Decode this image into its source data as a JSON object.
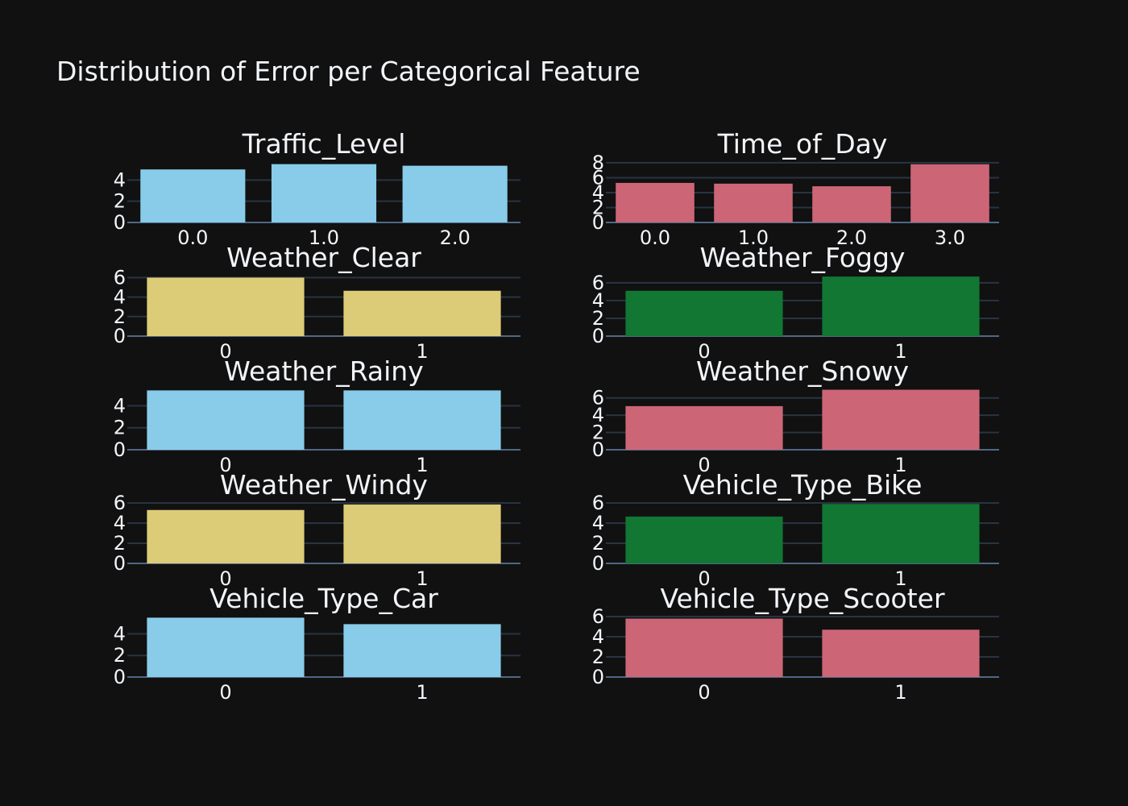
{
  "figure": {
    "title": "Distribution of Error per Categorical Feature",
    "background": "#111111",
    "text_color": "#f2f5fa"
  },
  "chart_data": [
    {
      "type": "bar",
      "title": "Traffic_Level",
      "categories": [
        "0.0",
        "1.0",
        "2.0"
      ],
      "values": [
        5.0,
        5.5,
        5.35
      ],
      "ylim": [
        0,
        5.7
      ],
      "yticks": [
        0,
        2,
        4
      ],
      "color": "#88cce9"
    },
    {
      "type": "bar",
      "title": "Time_of_Day",
      "categories": [
        "0.0",
        "1.0",
        "2.0",
        "3.0"
      ],
      "values": [
        5.3,
        5.2,
        4.85,
        7.8
      ],
      "ylim": [
        0,
        8.1
      ],
      "yticks": [
        0,
        2,
        4,
        6,
        8
      ],
      "color": "#cc6677"
    },
    {
      "type": "bar",
      "title": "Weather_Clear",
      "categories": [
        "0",
        "1"
      ],
      "values": [
        6.0,
        4.65
      ],
      "ylim": [
        0,
        6.2
      ],
      "yticks": [
        0,
        2,
        4,
        6
      ],
      "color": "#ddcc77"
    },
    {
      "type": "bar",
      "title": "Weather_Foggy",
      "categories": [
        "0",
        "1"
      ],
      "values": [
        5.1,
        6.7
      ],
      "ylim": [
        0,
        6.8
      ],
      "yticks": [
        0,
        2,
        4,
        6
      ],
      "color": "#117733"
    },
    {
      "type": "bar",
      "title": "Weather_Rainy",
      "categories": [
        "0",
        "1"
      ],
      "values": [
        5.4,
        5.4
      ],
      "ylim": [
        0,
        5.5
      ],
      "yticks": [
        0,
        2,
        4
      ],
      "color": "#88cce9"
    },
    {
      "type": "bar",
      "title": "Weather_Snowy",
      "categories": [
        "0",
        "1"
      ],
      "values": [
        5.05,
        6.95
      ],
      "ylim": [
        0,
        7.0
      ],
      "yticks": [
        0,
        2,
        4,
        6
      ],
      "color": "#cc6677"
    },
    {
      "type": "bar",
      "title": "Weather_Windy",
      "categories": [
        "0",
        "1"
      ],
      "values": [
        5.3,
        5.85
      ],
      "ylim": [
        0,
        6.0
      ],
      "yticks": [
        0,
        2,
        4,
        6
      ],
      "color": "#ddcc77"
    },
    {
      "type": "bar",
      "title": "Vehicle_Type_Bike",
      "categories": [
        "0",
        "1"
      ],
      "values": [
        4.65,
        5.9
      ],
      "ylim": [
        0,
        6.0
      ],
      "yticks": [
        0,
        2,
        4,
        6
      ],
      "color": "#117733"
    },
    {
      "type": "bar",
      "title": "Vehicle_Type_Car",
      "categories": [
        "0",
        "1"
      ],
      "values": [
        5.5,
        4.9
      ],
      "ylim": [
        0,
        5.6
      ],
      "yticks": [
        0,
        2,
        4
      ],
      "color": "#88cce9"
    },
    {
      "type": "bar",
      "title": "Vehicle_Type_Scooter",
      "categories": [
        "0",
        "1"
      ],
      "values": [
        5.8,
        4.7
      ],
      "ylim": [
        0,
        6.0
      ],
      "yticks": [
        0,
        2,
        4,
        6
      ],
      "color": "#cc6677"
    }
  ]
}
